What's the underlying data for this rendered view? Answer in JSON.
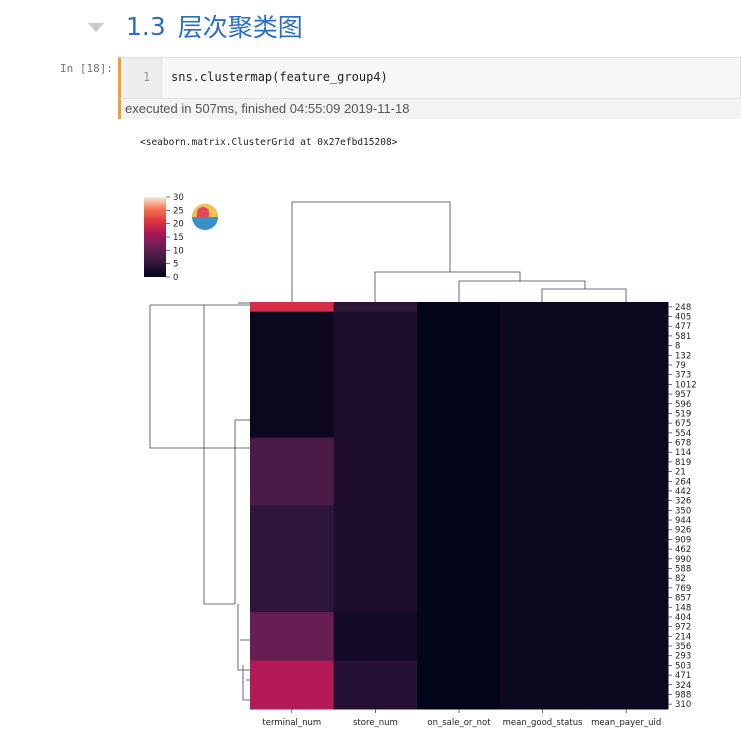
{
  "heading": {
    "number": "1.3",
    "title": "层次聚类图"
  },
  "cell": {
    "prompt": "In  [18]:",
    "line_number": "1",
    "code": "sns.clustermap(feature_group4)",
    "exec_status": "executed in 507ms, finished 04:55:09 2019-11-18"
  },
  "output": {
    "repr": "<seaborn.matrix.ClusterGrid at 0x27efbd15208>"
  },
  "icons": {
    "collapse": "chevron-down-icon",
    "overlay": "collab-icon"
  },
  "colors": {
    "heading": "#2a6fc4",
    "cell_accent": "#f0a030"
  },
  "chart_data": {
    "type": "heatmap",
    "columns": [
      "terminal_num",
      "store_num",
      "on_sale_or_not",
      "mean_good_status",
      "mean_payer_uid"
    ],
    "row_labels": [
      "248",
      "405",
      "477",
      "581",
      "8",
      "132",
      "79",
      "373",
      "1012",
      "957",
      "596",
      "519",
      "675",
      "554",
      "678",
      "114",
      "819",
      "21",
      "264",
      "442",
      "326",
      "350",
      "944",
      "926",
      "909",
      "462",
      "990",
      "588",
      "82",
      "769",
      "857",
      "148",
      "404",
      "972",
      "214",
      "356",
      "293",
      "503",
      "471",
      "324",
      "988",
      "310"
    ],
    "colorbar": {
      "ticks": [
        0,
        5,
        10,
        15,
        20,
        25,
        30
      ],
      "min": 0,
      "max": 30
    },
    "blocks": [
      {
        "rows": [
          0,
          1
        ],
        "values": [
          20,
          5,
          0,
          1,
          1
        ]
      },
      {
        "rows": [
          1,
          14
        ],
        "values": [
          1,
          3,
          0,
          1,
          1
        ]
      },
      {
        "rows": [
          14,
          21
        ],
        "values": [
          8,
          3,
          0,
          1,
          1
        ]
      },
      {
        "rows": [
          21,
          32
        ],
        "values": [
          5,
          3,
          0,
          1,
          1
        ]
      },
      {
        "rows": [
          32,
          37
        ],
        "values": [
          11,
          2,
          0,
          1,
          1
        ]
      },
      {
        "rows": [
          37,
          42
        ],
        "values": [
          17,
          4,
          0,
          1,
          1
        ]
      }
    ],
    "grid": false
  }
}
